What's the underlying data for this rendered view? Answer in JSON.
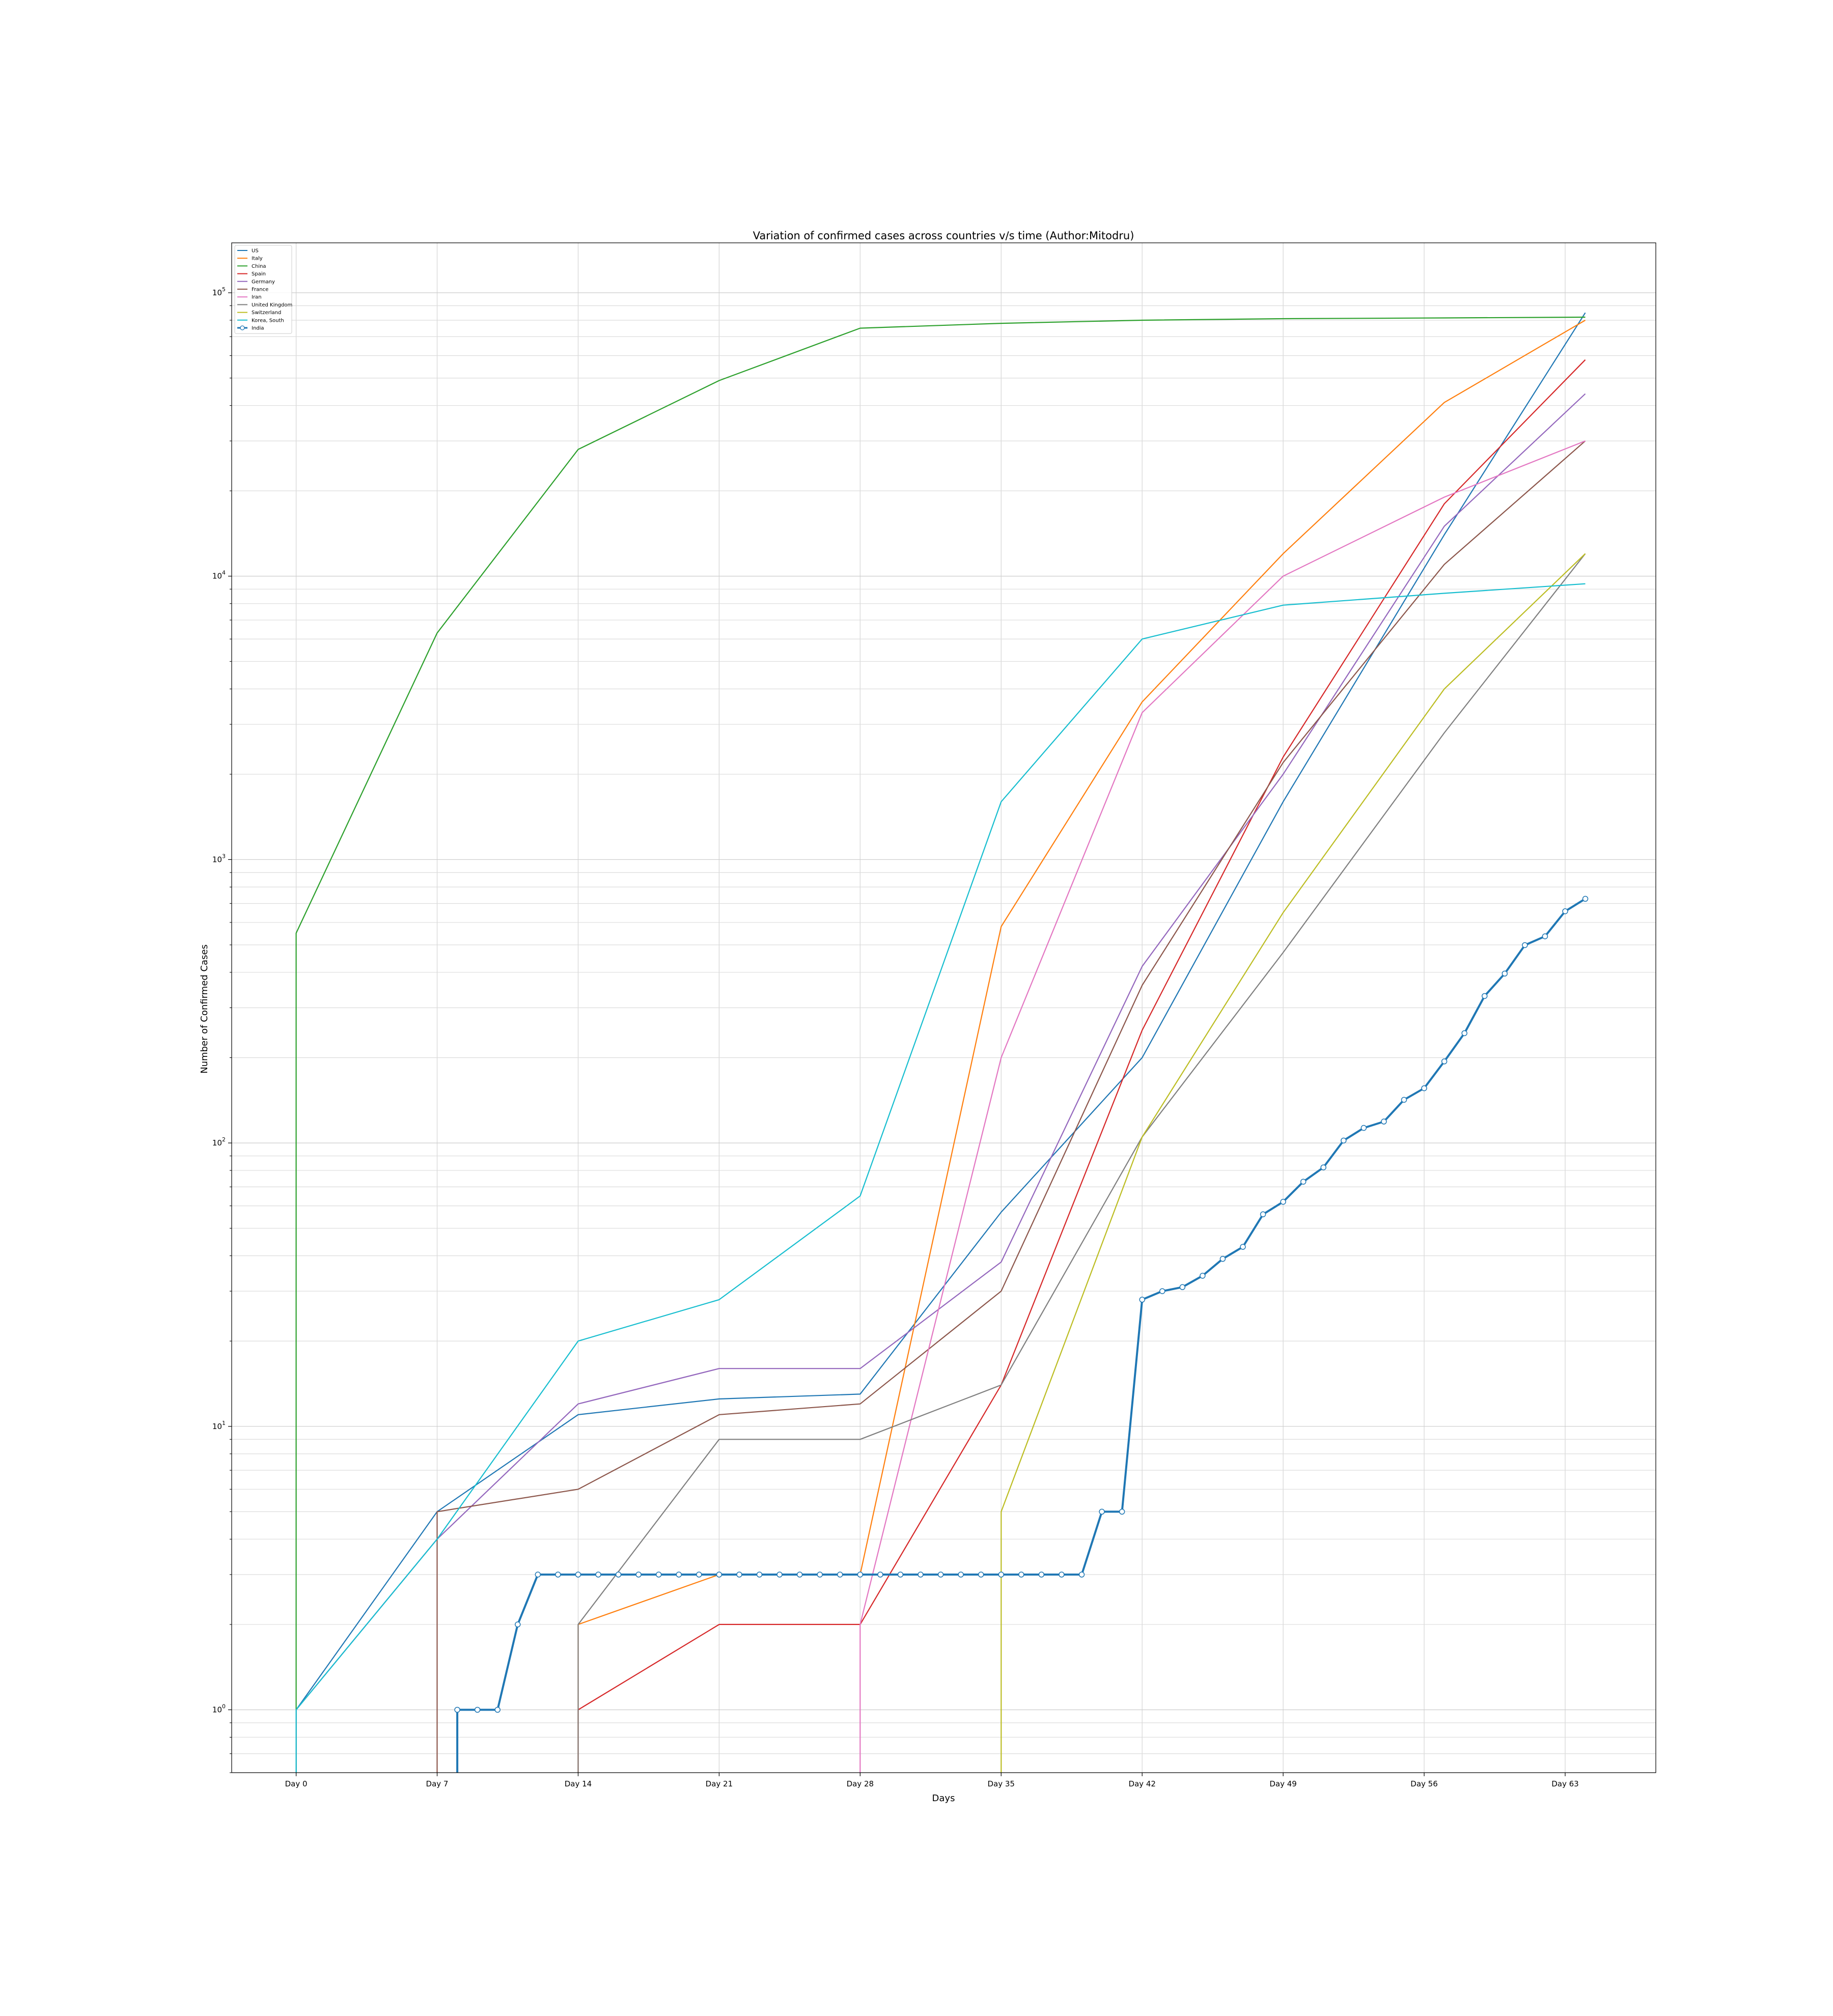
{
  "chart_data": {
    "type": "line",
    "title": "Variation of confirmed cases across countries v/s time (Author:Mitodru)",
    "xlabel": "Days",
    "ylabel": "Number of Confirmed Cases",
    "yscale": "log",
    "ylim": [
      0.6,
      150000
    ],
    "xlim": [
      -3.2,
      67.5
    ],
    "grid": true,
    "legend_position": "top-left",
    "x_ticks": [
      {
        "value": 0,
        "label": "Day 0"
      },
      {
        "value": 7,
        "label": "Day 7"
      },
      {
        "value": 14,
        "label": "Day 14"
      },
      {
        "value": 21,
        "label": "Day 21"
      },
      {
        "value": 28,
        "label": "Day 28"
      },
      {
        "value": 35,
        "label": "Day 35"
      },
      {
        "value": 42,
        "label": "Day 42"
      },
      {
        "value": 49,
        "label": "Day 49"
      },
      {
        "value": 56,
        "label": "Day 56"
      },
      {
        "value": 63,
        "label": "Day 63"
      }
    ],
    "y_ticks": [
      {
        "value": 1,
        "base": "10",
        "exp": "0"
      },
      {
        "value": 10,
        "base": "10",
        "exp": "1"
      },
      {
        "value": 100,
        "base": "10",
        "exp": "2"
      },
      {
        "value": 1000,
        "base": "10",
        "exp": "3"
      },
      {
        "value": 10000,
        "base": "10",
        "exp": "4"
      },
      {
        "value": 100000,
        "base": "10",
        "exp": "5"
      }
    ],
    "series": [
      {
        "name": "US",
        "color": "#1f77b4",
        "x": [
          0,
          7,
          14,
          21,
          28,
          35,
          42,
          49,
          57,
          64
        ],
        "y": [
          1,
          5,
          11,
          12.5,
          13,
          57,
          200,
          1600,
          14000,
          85000
        ]
      },
      {
        "name": "Italy",
        "color": "#ff7f0e",
        "x": [
          14,
          21,
          28,
          35,
          42,
          49,
          57,
          64
        ],
        "y": [
          2,
          3,
          3,
          580,
          3600,
          12000,
          41000,
          80000
        ]
      },
      {
        "name": "China",
        "color": "#2ca02c",
        "x": [
          0,
          7,
          14,
          21,
          28,
          35,
          42,
          49,
          57,
          64
        ],
        "y": [
          550,
          6300,
          28000,
          49000,
          75000,
          78000,
          80000,
          81000,
          81500,
          82000
        ]
      },
      {
        "name": "Spain",
        "color": "#d62728",
        "x": [
          14,
          21,
          28,
          35,
          42,
          49,
          57,
          64
        ],
        "y": [
          1,
          2,
          2,
          14,
          250,
          2300,
          18000,
          58000
        ]
      },
      {
        "name": "Germany",
        "color": "#9467bd",
        "x": [
          0,
          7,
          14,
          21,
          28,
          35,
          42,
          49,
          57,
          64
        ],
        "y": [
          1,
          4,
          12,
          16,
          16,
          38,
          420,
          2000,
          15000,
          44000
        ]
      },
      {
        "name": "France",
        "color": "#8c564b",
        "x": [
          7,
          14,
          21,
          28,
          35,
          42,
          49,
          57,
          64
        ],
        "y": [
          5,
          6,
          11,
          12,
          30,
          360,
          2200,
          11000,
          30000
        ]
      },
      {
        "name": "Iran",
        "color": "#e377c2",
        "x": [
          28,
          35,
          42,
          49,
          57,
          64
        ],
        "y": [
          2,
          200,
          3300,
          10000,
          19000,
          30000
        ]
      },
      {
        "name": "United Kingdom",
        "color": "#7f7f7f",
        "x": [
          14,
          21,
          28,
          35,
          42,
          49,
          57,
          64
        ],
        "y": [
          2,
          9,
          9,
          14,
          105,
          470,
          2800,
          12000
        ]
      },
      {
        "name": "Switzerland",
        "color": "#bcbd22",
        "x": [
          35,
          42,
          49,
          57,
          64
        ],
        "y": [
          5,
          105,
          650,
          4000,
          12000
        ]
      },
      {
        "name": "Korea, South",
        "color": "#17becf",
        "x": [
          0,
          7,
          14,
          21,
          28,
          35,
          42,
          49,
          57,
          64
        ],
        "y": [
          1,
          4,
          20,
          28,
          65,
          1600,
          6000,
          7900,
          8700,
          9400
        ]
      },
      {
        "name": "India",
        "color": "#1f77b4",
        "marker": "circle",
        "x": [
          8,
          9,
          10,
          11,
          12,
          13,
          14,
          15,
          16,
          17,
          18,
          19,
          20,
          21,
          22,
          23,
          24,
          25,
          26,
          27,
          28,
          29,
          30,
          31,
          32,
          33,
          34,
          35,
          36,
          37,
          38,
          39,
          40,
          41,
          42,
          43,
          44,
          45,
          46,
          47,
          48,
          49,
          50,
          51,
          52,
          53,
          54,
          55,
          56,
          57,
          58,
          59,
          60,
          61,
          62,
          63,
          64
        ],
        "y": [
          1,
          1,
          1,
          2,
          3,
          3,
          3,
          3,
          3,
          3,
          3,
          3,
          3,
          3,
          3,
          3,
          3,
          3,
          3,
          3,
          3,
          3,
          3,
          3,
          3,
          3,
          3,
          3,
          3,
          3,
          3,
          3,
          5,
          5,
          28,
          30,
          31,
          34,
          39,
          43,
          56,
          62,
          73,
          82,
          102,
          113,
          119,
          142,
          156,
          194,
          244,
          330,
          396,
          499,
          536,
          657,
          727
        ]
      }
    ]
  }
}
